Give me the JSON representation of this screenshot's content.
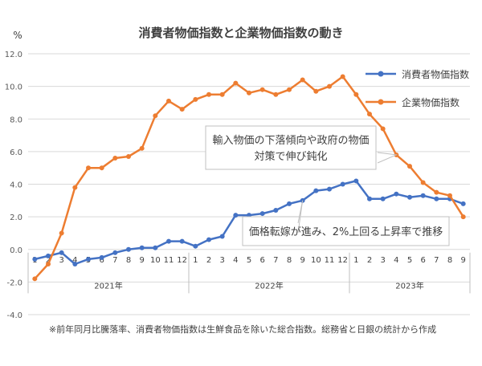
{
  "chart_data": {
    "type": "line",
    "title": "消費者物価指数と企業物価指数の動き",
    "y_unit": "%",
    "ylim": [
      -4.0,
      12.0
    ],
    "y_ticks": [
      "-4.0",
      "-2.0",
      "0.0",
      "2.0",
      "4.0",
      "6.0",
      "8.0",
      "10.0",
      "12.0"
    ],
    "y_tick_values": [
      -4,
      -2,
      0,
      2,
      4,
      6,
      8,
      10,
      12
    ],
    "month_labels": [
      "1",
      "2",
      "3",
      "4",
      "5",
      "6",
      "7",
      "8",
      "9",
      "10",
      "11",
      "12",
      "1",
      "2",
      "3",
      "4",
      "5",
      "6",
      "7",
      "8",
      "9",
      "10",
      "11",
      "12",
      "1",
      "2",
      "3",
      "4",
      "5",
      "6",
      "7",
      "8",
      "9"
    ],
    "year_labels": [
      {
        "label": "2021年",
        "months": 12
      },
      {
        "label": "2022年",
        "months": 12
      },
      {
        "label": "2023年",
        "months": 9
      }
    ],
    "grid": true,
    "legend_position": "top-right",
    "series": [
      {
        "name": "消費者物価指数",
        "color": "#4472c4",
        "values": [
          -0.6,
          -0.4,
          -0.2,
          -0.9,
          -0.6,
          -0.5,
          -0.2,
          0.0,
          0.1,
          0.1,
          0.5,
          0.5,
          0.2,
          0.6,
          0.8,
          2.1,
          2.1,
          2.2,
          2.4,
          2.8,
          3.0,
          3.6,
          3.7,
          4.0,
          4.2,
          3.1,
          3.1,
          3.4,
          3.2,
          3.3,
          3.1,
          3.1,
          2.8
        ]
      },
      {
        "name": "企業物価指数",
        "color": "#ed7d31",
        "values": [
          -1.8,
          -0.9,
          1.0,
          3.8,
          5.0,
          5.0,
          5.6,
          5.7,
          6.2,
          8.2,
          9.1,
          8.6,
          9.2,
          9.5,
          9.5,
          10.2,
          9.6,
          9.8,
          9.5,
          9.8,
          10.4,
          9.7,
          10.0,
          10.6,
          9.5,
          8.3,
          7.4,
          5.8,
          5.1,
          4.1,
          3.5,
          3.3,
          2.0
        ]
      }
    ],
    "annotations": [
      {
        "lines": [
          "輸入物価の下落傾向や政府の物価",
          "対策で伸び鈍化"
        ],
        "target_series": 1,
        "target_index": 27
      },
      {
        "lines": [
          "価格転嫁が進み、2%上回る上昇率で推移"
        ],
        "target_series": 0,
        "target_index": 20
      }
    ],
    "footnote": "※前年同月比騰落率、消費者物価指数は生鮮食品を除いた総合指数。総務省と日銀の統計から作成"
  }
}
